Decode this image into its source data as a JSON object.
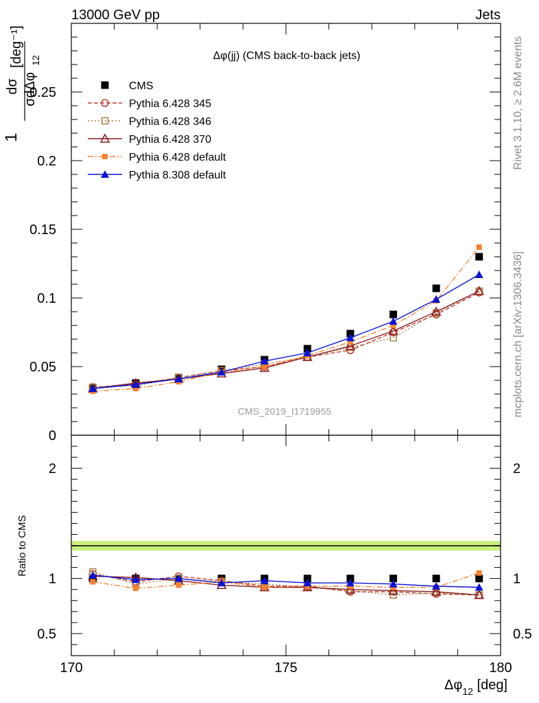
{
  "header": {
    "left": "13000 GeV pp",
    "right": "Jets"
  },
  "side": {
    "rivet": "Rivet 3.1.10, ≥ 2.6M events",
    "mcplots": "mcplots.cern.ch [arXiv:1306.3436]"
  },
  "chart_data": {
    "type": "line",
    "title": "Δφ(jj) (CMS back-to-back jets)",
    "watermark": "CMS_2019_I1719955",
    "xlabel": "Δφ",
    "xlabel_sub": "12",
    "xlabel_unit": " [deg]",
    "ylabel": "1/σ dσ/dΔφ_12 [deg⁻¹]",
    "ratio_ylabel": "Ratio to CMS",
    "xlim": [
      170,
      180
    ],
    "ylim_main": [
      0,
      0.3
    ],
    "ylim_ratio": [
      0.3,
      2.3
    ],
    "x_ticks": [
      "170",
      "175",
      "180"
    ],
    "y_ticks_main": [
      "0",
      "0.05",
      "0.1",
      "0.15",
      "0.2",
      "0.25"
    ],
    "y_ticks_ratio": [
      "0.5",
      "1",
      "2"
    ],
    "x": [
      170.5,
      171.5,
      172.5,
      173.5,
      174.5,
      175.5,
      176.5,
      177.5,
      178.5,
      179.5
    ],
    "series": [
      {
        "name": "CMS",
        "color": "#000000",
        "marker": "square-filled",
        "line": "none",
        "values": [
          0.034,
          0.038,
          0.042,
          0.048,
          0.055,
          0.063,
          0.074,
          0.088,
          0.107,
          0.13
        ],
        "ratio": [
          1.0,
          1.0,
          1.0,
          1.0,
          1.0,
          1.0,
          1.0,
          1.0,
          1.0,
          1.0
        ]
      },
      {
        "name": "Pythia 6.428 345",
        "color": "#c0392b",
        "marker": "circle-open",
        "line": "dashed",
        "values": [
          0.035,
          0.037,
          0.042,
          0.047,
          0.05,
          0.057,
          0.062,
          0.075,
          0.088,
          0.104
        ],
        "ratio": [
          1.04,
          0.97,
          1.02,
          0.98,
          0.93,
          0.93,
          0.88,
          0.88,
          0.86,
          0.85
        ]
      },
      {
        "name": "Pythia 6.428 346",
        "color": "#a67c40",
        "marker": "square-open",
        "line": "dotted",
        "values": [
          0.035,
          0.036,
          0.042,
          0.047,
          0.052,
          0.057,
          0.064,
          0.071,
          0.089,
          0.105
        ],
        "ratio": [
          1.06,
          0.95,
          1.0,
          0.97,
          0.95,
          0.92,
          0.89,
          0.85,
          0.87,
          0.85
        ]
      },
      {
        "name": "Pythia 6.428 370",
        "color": "#8b1a1a",
        "marker": "triangle-open",
        "line": "solid",
        "values": [
          0.034,
          0.038,
          0.041,
          0.045,
          0.049,
          0.057,
          0.065,
          0.076,
          0.09,
          0.105
        ],
        "ratio": [
          1.02,
          1.01,
          0.98,
          0.94,
          0.92,
          0.92,
          0.9,
          0.89,
          0.88,
          0.85
        ]
      },
      {
        "name": "Pythia 6.428 default",
        "color": "#f58231",
        "marker": "square-small",
        "line": "dashdot",
        "values": [
          0.032,
          0.034,
          0.039,
          0.046,
          0.05,
          0.058,
          0.068,
          0.08,
          0.098,
          0.137
        ],
        "ratio": [
          0.97,
          0.91,
          0.94,
          0.97,
          0.92,
          0.93,
          0.93,
          0.92,
          0.92,
          1.05
        ]
      },
      {
        "name": "Pythia 8.308 default",
        "color": "#0a14d6",
        "marker": "triangle-filled",
        "line": "solid",
        "values": [
          0.034,
          0.037,
          0.041,
          0.046,
          0.054,
          0.06,
          0.071,
          0.083,
          0.099,
          0.117
        ],
        "ratio": [
          1.03,
          0.99,
          1.0,
          0.96,
          0.98,
          0.96,
          0.96,
          0.95,
          0.93,
          0.92
        ]
      }
    ]
  }
}
